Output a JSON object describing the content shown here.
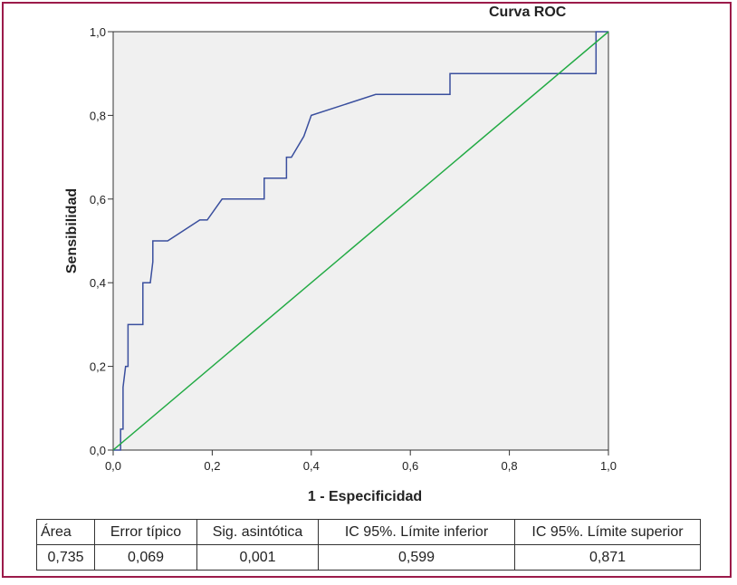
{
  "chart_data": {
    "type": "line",
    "title": "Curva ROC",
    "xlabel": "1 - Especificidad",
    "ylabel": "Sensibilidad",
    "xlim": [
      0,
      1
    ],
    "ylim": [
      0,
      1
    ],
    "x_ticks": [
      "0,0",
      "0,2",
      "0,4",
      "0,6",
      "0,8",
      "1,0"
    ],
    "y_ticks": [
      "0,0",
      "0,2",
      "0,4",
      "0,6",
      "0,8",
      "1,0"
    ],
    "grid": false,
    "plot_background": "#f0f0f0",
    "series": [
      {
        "color": "#3a4f9e",
        "x": [
          0,
          0.015,
          0.015,
          0.02,
          0.02,
          0.025,
          0.03,
          0.03,
          0.06,
          0.06,
          0.075,
          0.08,
          0.08,
          0.11,
          0.175,
          0.19,
          0.22,
          0.305,
          0.305,
          0.35,
          0.35,
          0.36,
          0.385,
          0.4,
          0.53,
          0.68,
          0.68,
          0.975,
          0.975,
          1.0
        ],
        "y": [
          0,
          0,
          0.05,
          0.05,
          0.15,
          0.2,
          0.2,
          0.3,
          0.3,
          0.4,
          0.4,
          0.45,
          0.5,
          0.5,
          0.55,
          0.55,
          0.6,
          0.6,
          0.65,
          0.65,
          0.7,
          0.7,
          0.75,
          0.8,
          0.85,
          0.85,
          0.9,
          0.9,
          1.0,
          1.0
        ]
      },
      {
        "color": "#22aa44",
        "x": [
          0,
          1
        ],
        "y": [
          0,
          1
        ]
      }
    ]
  },
  "stats_table": {
    "headers": [
      "Área",
      "Error típico",
      "Sig. asintótica",
      "IC 95%. Límite inferior",
      "IC 95%. Límite superior"
    ],
    "values": [
      "0,735",
      "0,069",
      "0,001",
      "0,599",
      "0,871"
    ]
  },
  "colors": {
    "frame": "#9b1b4a"
  }
}
